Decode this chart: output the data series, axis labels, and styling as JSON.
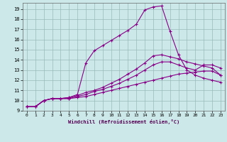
{
  "xlabel": "Windchill (Refroidissement éolien,°C)",
  "bg_color": "#cce8e8",
  "line_color": "#880088",
  "grid_color": "#99bbbb",
  "xlim": [
    -0.5,
    23.5
  ],
  "ylim": [
    9.0,
    19.6
  ],
  "xticks": [
    0,
    1,
    2,
    3,
    4,
    5,
    6,
    7,
    8,
    9,
    10,
    11,
    12,
    13,
    14,
    15,
    16,
    17,
    18,
    19,
    20,
    21,
    22,
    23
  ],
  "yticks": [
    9,
    10,
    11,
    12,
    13,
    14,
    15,
    16,
    17,
    18,
    19
  ],
  "line1_x": [
    0,
    1,
    2,
    3,
    4,
    5,
    6,
    7,
    8,
    9,
    10,
    11,
    12,
    13,
    14,
    15,
    16,
    17,
    18,
    19,
    20,
    21,
    22,
    23
  ],
  "line1_y": [
    9.4,
    9.4,
    10.0,
    10.2,
    10.2,
    10.2,
    10.3,
    10.4,
    10.6,
    10.8,
    11.0,
    11.2,
    11.4,
    11.6,
    11.8,
    12.0,
    12.2,
    12.4,
    12.6,
    12.7,
    12.8,
    12.9,
    12.9,
    12.5
  ],
  "line2_x": [
    0,
    1,
    2,
    3,
    4,
    5,
    6,
    7,
    8,
    9,
    10,
    11,
    12,
    13,
    14,
    15,
    16,
    17,
    18,
    19,
    20,
    21,
    22,
    23
  ],
  "line2_y": [
    9.4,
    9.4,
    10.0,
    10.2,
    10.2,
    10.2,
    10.4,
    10.6,
    10.9,
    11.1,
    11.4,
    11.7,
    12.1,
    12.5,
    13.0,
    13.5,
    13.8,
    13.8,
    13.5,
    13.2,
    13.0,
    13.5,
    13.5,
    13.2
  ],
  "line3_x": [
    0,
    1,
    2,
    3,
    4,
    5,
    6,
    7,
    8,
    9,
    10,
    11,
    12,
    13,
    14,
    15,
    16,
    17,
    18,
    19,
    20,
    21,
    22,
    23
  ],
  "line3_y": [
    9.4,
    9.4,
    10.0,
    10.2,
    10.2,
    10.3,
    10.5,
    10.8,
    11.0,
    11.3,
    11.7,
    12.1,
    12.6,
    13.1,
    13.7,
    14.4,
    14.5,
    14.3,
    14.1,
    13.8,
    13.6,
    13.4,
    13.2,
    12.5
  ],
  "line4_x": [
    0,
    1,
    2,
    3,
    4,
    5,
    6,
    7,
    8,
    9,
    10,
    11,
    12,
    13,
    14,
    15,
    16,
    17,
    18,
    19,
    20,
    21,
    22,
    23
  ],
  "line4_y": [
    9.4,
    9.4,
    10.0,
    10.2,
    10.2,
    10.3,
    10.6,
    13.7,
    14.9,
    15.4,
    15.9,
    16.4,
    16.9,
    17.5,
    18.9,
    19.2,
    19.3,
    16.8,
    14.5,
    13.0,
    12.5,
    12.2,
    12.0,
    11.8
  ]
}
